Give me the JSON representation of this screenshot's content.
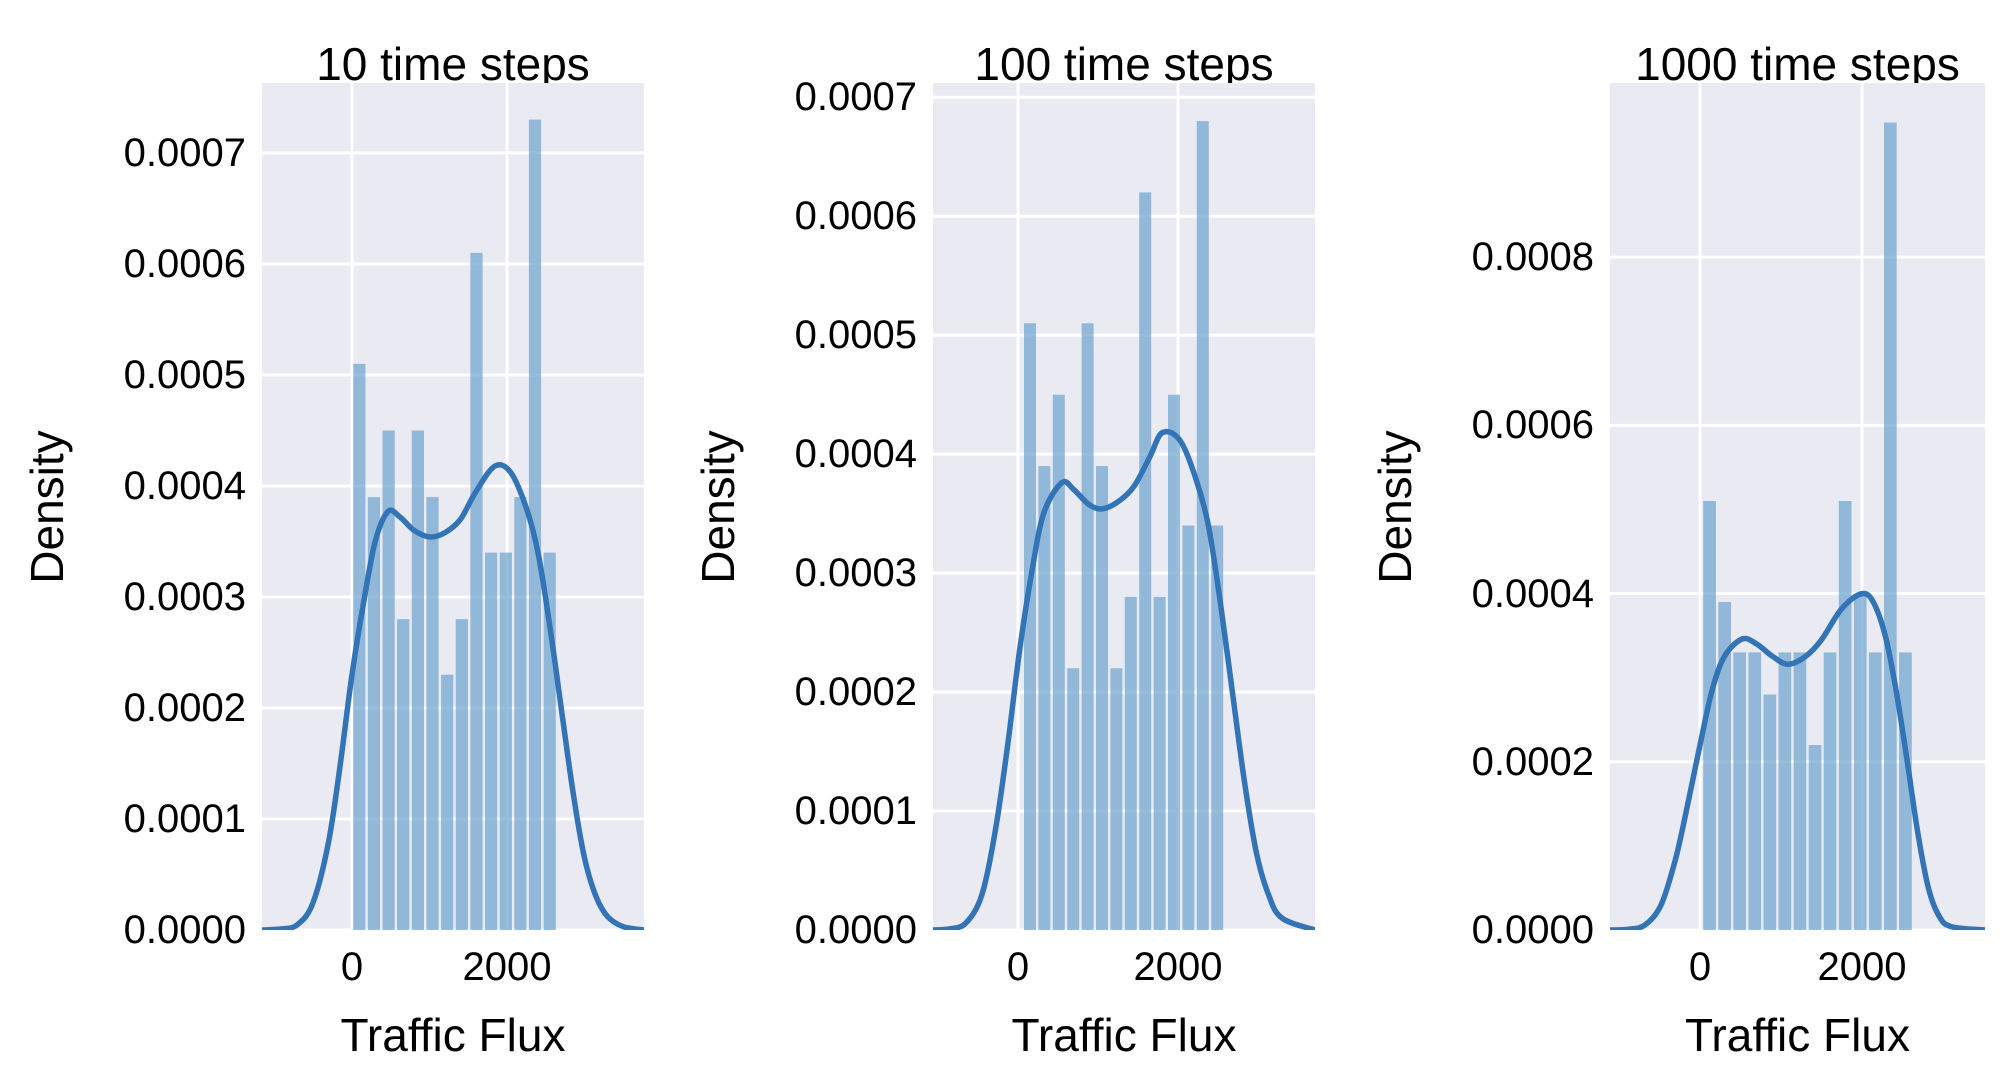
{
  "figure": {
    "kind": "seaborn histogram + kde, 3 subplots",
    "background": "#ffffff",
    "plot_background": "#eaeaf2",
    "grid_color": "#ffffff",
    "bar_color": "#6ba3cf",
    "bar_opacity": 0.7,
    "kde_color": "#3274b5",
    "text_color": "#000000"
  },
  "chart_data": [
    {
      "type": "histogram+kde",
      "title": "10 time steps",
      "xlabel": "Traffic Flux",
      "ylabel": "Density",
      "xlim": [
        -1161,
        3768
      ],
      "ylim": [
        0,
        0.000763
      ],
      "grid": true,
      "xticks": [
        {
          "value": 0,
          "label": "0"
        },
        {
          "value": 2000,
          "label": "2000"
        }
      ],
      "yticks": [
        {
          "value": 0.0,
          "label": "0.0000"
        },
        {
          "value": 0.0001,
          "label": "0.0001"
        },
        {
          "value": 0.0002,
          "label": "0.0002"
        },
        {
          "value": 0.0003,
          "label": "0.0003"
        },
        {
          "value": 0.0004,
          "label": "0.0004"
        },
        {
          "value": 0.0005,
          "label": "0.0005"
        },
        {
          "value": 0.0006,
          "label": "0.0006"
        },
        {
          "value": 0.0007,
          "label": "0.0007"
        }
      ],
      "bins": {
        "start": 0,
        "width": 189,
        "densities": [
          0.00051,
          0.00039,
          0.00045,
          0.00028,
          0.00045,
          0.00039,
          0.00023,
          0.00028,
          0.00061,
          0.00034,
          0.00034,
          0.00039,
          0.00073,
          0.00034
        ]
      },
      "kde": {
        "x": [
          -1161,
          -900,
          -700,
          -500,
          -300,
          -150,
          0,
          150,
          300,
          465,
          620,
          800,
          1006,
          1200,
          1400,
          1600,
          1845,
          2050,
          2250,
          2400,
          2550,
          2700,
          2850,
          3000,
          3150,
          3300,
          3500,
          3768
        ],
        "y": [
          0,
          1e-06,
          5e-06,
          2.5e-05,
          8e-05,
          0.00015,
          0.00023,
          0.000295,
          0.00035,
          0.000377,
          0.000372,
          0.00036,
          0.000354,
          0.000358,
          0.00037,
          0.000395,
          0.000418,
          0.000412,
          0.00038,
          0.00034,
          0.000275,
          0.0002,
          0.000125,
          6.5e-05,
          3e-05,
          1.2e-05,
          3e-06,
          0
        ]
      }
    },
    {
      "type": "histogram+kde",
      "title": "100 time steps",
      "xlabel": "Traffic Flux",
      "ylabel": "Density",
      "xlim": [
        -1063,
        3713
      ],
      "ylim": [
        0,
        0.000712
      ],
      "grid": true,
      "xticks": [
        {
          "value": 0,
          "label": "0"
        },
        {
          "value": 2000,
          "label": "2000"
        }
      ],
      "yticks": [
        {
          "value": 0.0,
          "label": "0.0000"
        },
        {
          "value": 0.0001,
          "label": "0.0001"
        },
        {
          "value": 0.0002,
          "label": "0.0002"
        },
        {
          "value": 0.0003,
          "label": "0.0003"
        },
        {
          "value": 0.0004,
          "label": "0.0004"
        },
        {
          "value": 0.0005,
          "label": "0.0005"
        },
        {
          "value": 0.0006,
          "label": "0.0006"
        },
        {
          "value": 0.0007,
          "label": "0.0007"
        }
      ],
      "bins": {
        "start": 60,
        "width": 180,
        "densities": [
          0.00051,
          0.00039,
          0.00045,
          0.00022,
          0.00051,
          0.00039,
          0.00022,
          0.00028,
          0.00062,
          0.00028,
          0.00045,
          0.00034,
          0.00068,
          0.00034
        ]
      },
      "kde": {
        "x": [
          -1063,
          -850,
          -650,
          -450,
          -280,
          -130,
          20,
          170,
          320,
          547,
          700,
          880,
          1047,
          1250,
          1450,
          1650,
          1802,
          2020,
          2220,
          2380,
          2530,
          2680,
          2830,
          2980,
          3130,
          3300,
          3713
        ],
        "y": [
          0,
          1e-06,
          6e-06,
          3e-05,
          8.5e-05,
          0.000155,
          0.000235,
          0.0003,
          0.00035,
          0.000376,
          0.00037,
          0.000358,
          0.000354,
          0.00036,
          0.000373,
          0.000398,
          0.000418,
          0.000412,
          0.00038,
          0.00034,
          0.000275,
          0.0002,
          0.000125,
          6.5e-05,
          3e-05,
          1e-05,
          0
        ]
      }
    },
    {
      "type": "histogram+kde",
      "title": "1000 time steps",
      "xlabel": "Traffic Flux",
      "ylabel": "Density",
      "xlim": [
        -1111,
        3519
      ],
      "ylim": [
        0,
        0.001007
      ],
      "grid": true,
      "xticks": [
        {
          "value": 0,
          "label": "0"
        },
        {
          "value": 2000,
          "label": "2000"
        }
      ],
      "yticks": [
        {
          "value": 0.0,
          "label": "0.0000"
        },
        {
          "value": 0.0002,
          "label": "0.0002"
        },
        {
          "value": 0.0004,
          "label": "0.0004"
        },
        {
          "value": 0.0006,
          "label": "0.0006"
        },
        {
          "value": 0.0008,
          "label": "0.0008"
        }
      ],
      "bins": {
        "start": 25,
        "width": 186,
        "densities": [
          0.00051,
          0.00039,
          0.00033,
          0.00033,
          0.00028,
          0.00033,
          0.00033,
          0.00022,
          0.00033,
          0.00051,
          0.0004,
          0.00033,
          0.00096,
          0.00033
        ]
      },
      "kde": {
        "x": [
          -1111,
          -880,
          -680,
          -480,
          -300,
          -150,
          0,
          150,
          300,
          520,
          700,
          900,
          1085,
          1300,
          1500,
          1750,
          2000,
          2150,
          2300,
          2430,
          2560,
          2690,
          2820,
          2950,
          3100,
          3519
        ],
        "y": [
          0,
          1e-06,
          6e-06,
          3e-05,
          8.5e-05,
          0.00015,
          0.00022,
          0.000285,
          0.000325,
          0.000346,
          0.00034,
          0.000325,
          0.000316,
          0.000325,
          0.000345,
          0.000382,
          0.0004,
          0.000388,
          0.000345,
          0.00028,
          0.0002,
          0.000115,
          5e-05,
          1.7e-05,
          4e-06,
          0
        ]
      }
    }
  ]
}
